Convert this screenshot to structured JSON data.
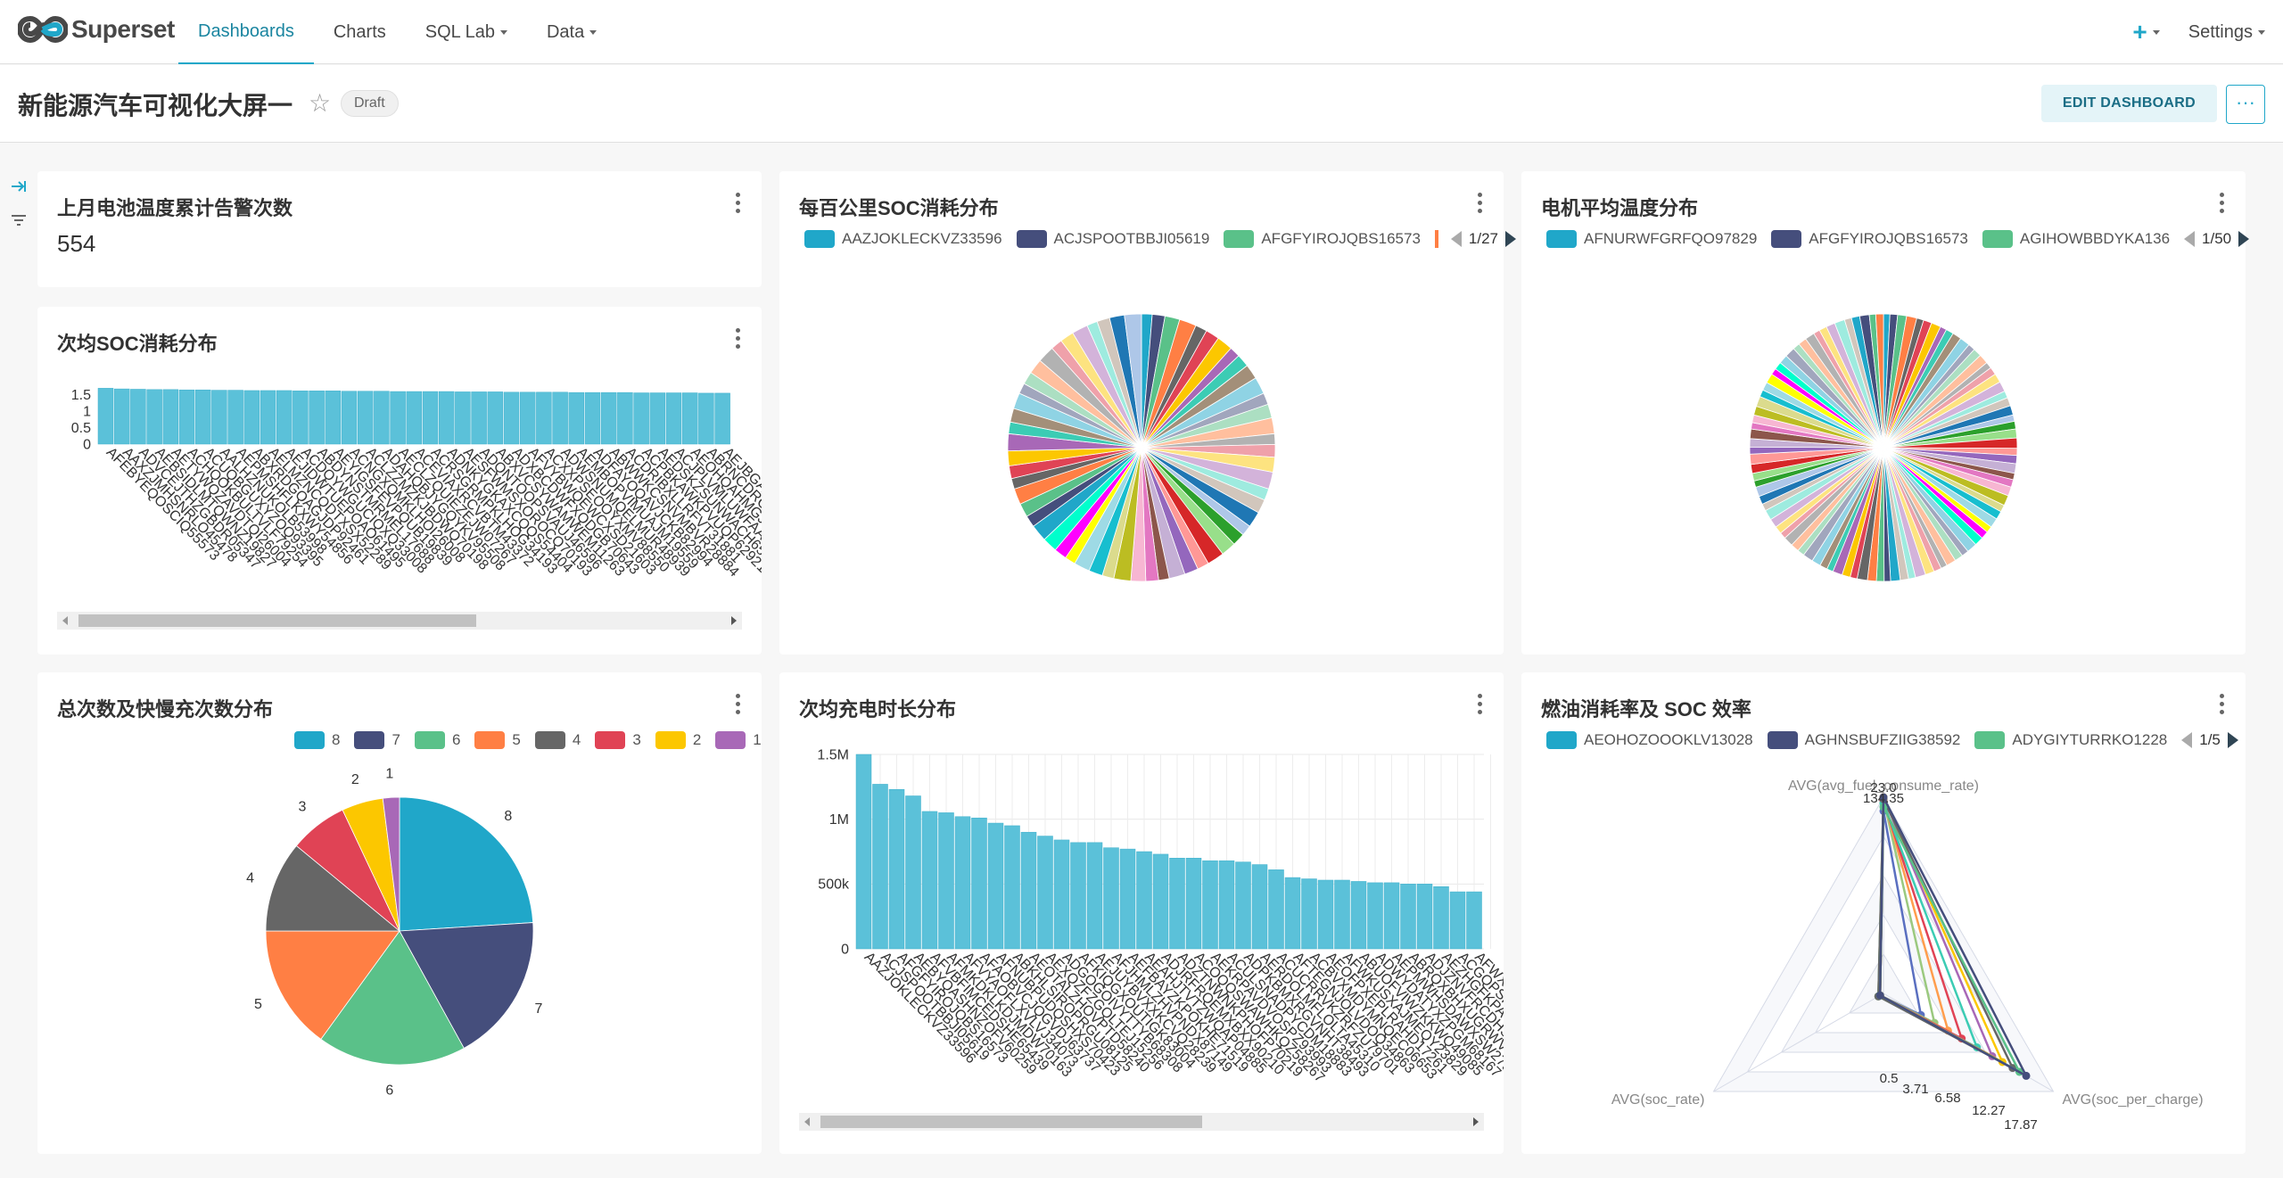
{
  "nav": {
    "brand": "Superset",
    "items": [
      {
        "label": "Dashboards",
        "active": true,
        "caret": false
      },
      {
        "label": "Charts",
        "active": false,
        "caret": false
      },
      {
        "label": "SQL Lab",
        "active": false,
        "caret": true
      },
      {
        "label": "Data",
        "active": false,
        "caret": true
      }
    ],
    "plus": "+",
    "settings": "Settings"
  },
  "header": {
    "title": "新能源汽车可视化大屏一",
    "badge": "Draft",
    "edit_label": "EDIT DASHBOARD",
    "more_label": "···"
  },
  "colors": [
    "#20a7c9",
    "#454e7c",
    "#5ac189",
    "#ff7f44",
    "#666666",
    "#e04355",
    "#fcc700",
    "#a868b7",
    "#3cccb4",
    "#a38f79",
    "#8fd3e4",
    "#a1a6bd",
    "#acdfc2",
    "#ffbf9e",
    "#b2b2b2",
    "#efa1aa",
    "#fde380",
    "#d3b3da",
    "#9eebdf",
    "#d1c6bc",
    "#1f77b4",
    "#aec7e8",
    "#2ca02c",
    "#98df8a",
    "#d62728",
    "#ff9896",
    "#9467bd",
    "#c5b0d5",
    "#8c564b",
    "#e377c2",
    "#f7b6d2",
    "#bcbd22",
    "#dbdb8d",
    "#17becf",
    "#9edae5",
    "#ffff00",
    "#ff00ff",
    "#00ffcc"
  ],
  "cards": {
    "alarm": {
      "title": "上月电池温度累计告警次数",
      "value": "554"
    },
    "soc_per": {
      "title": "次均SOC消耗分布",
      "chart_data": {
        "type": "bar",
        "yticks": [
          "1.5",
          "1",
          "0.5",
          "0"
        ],
        "ylim": [
          0,
          1.9
        ],
        "values": [
          1.7,
          1.68,
          1.67,
          1.66,
          1.66,
          1.65,
          1.65,
          1.64,
          1.64,
          1.63,
          1.63,
          1.63,
          1.62,
          1.62,
          1.62,
          1.61,
          1.61,
          1.61,
          1.6,
          1.6,
          1.6,
          1.6,
          1.59,
          1.59,
          1.59,
          1.58,
          1.58,
          1.58,
          1.58,
          1.57,
          1.57,
          1.57,
          1.57,
          1.56,
          1.56,
          1.56,
          1.56,
          1.55,
          1.55,
          1.55
        ],
        "categories": [
          "AFEBYEQOSCIQ55573",
          "AAXZJMHSNRLO45478",
          "ADVCEJTHZGBDR05347",
          "AEBSIDLMTQWNZ19827",
          "AETYWQZAVDTQI26004",
          "ACHQOKBULTVLF79254",
          "ACUQBGUXYZOQ93395",
          "AALHZNUKOLB53998",
          "AEPMSHFLKXWY54856",
          "ABXRDGQAGJDP92461",
          "AELMZNCQDTXSX52289",
          "AEJIDWTUEPOAO61495",
          "ACDQYWGUCIQXQ33008",
          "ABDYNSTMRMEL17688",
          "AEYIGSFEVPQUB19839",
          "ACNGXQMKLHOI26008",
          "ACLZZMZKJBDWQ70198",
          "ADAHQBJYGQYKV95508",
          "AECLZQUIEZEJW07267",
          "ACEVIAXRCVBTM43372",
          "ACRSGRMPKLHOG34193",
          "ADNKYGKAXCQQS54404",
          "AESFWMSXOROCQ70193",
          "ADQNTOOPSVAUJ46596",
          "ABXVCSYWAMWEM11263",
          "ADXBCDWFXQDGB70643",
          "AFVYBWQEWCXSD21603",
          "ACXXPSEOOYXMV88550",
          "ADWSNUMQELMUR48939",
          "AEMBOPVIMUAJM19559",
          "ADFAYOQAVJCKB82994",
          "ABWWKCSNVMBVR28884",
          "ACDRIBXLLRFVT31881",
          "ACPBKAWKPVUQP62921",
          "AEDSKZSUNWACH65178",
          "ACJPLVMLUWFAA22941",
          "AEOHQAHMGJZOD99153",
          "ABRNCDRCOXAZE90077",
          "AEJBGAXPZXFXS91104",
          "ACDKAHIYBOAQY12938"
        ]
      }
    },
    "soc100": {
      "title": "每百公里SOC消耗分布",
      "legend": [
        "AAZJOKLECKVZ33596",
        "ACJSPOOTBBJI05619",
        "AFGFYIROJQBS16573"
      ],
      "page": "1/27",
      "chart_data": {
        "type": "pie",
        "slices": 60
      }
    },
    "motor": {
      "title": "电机平均温度分布",
      "legend": [
        "AFNURWFGRFQO97829",
        "AFGFYIROJQBS16573",
        "AGIHOWBBDYKA136"
      ],
      "page": "1/50",
      "chart_data": {
        "type": "pie",
        "slices": 100
      }
    },
    "charge_count": {
      "title": "总次数及快慢充次数分布",
      "legend": [
        "8",
        "7",
        "6",
        "5",
        "4",
        "3",
        "2",
        "1"
      ],
      "chart_data": {
        "type": "pie",
        "labels": [
          "8",
          "7",
          "6",
          "5",
          "4",
          "3",
          "2",
          "1"
        ],
        "values": [
          24,
          18,
          18,
          15,
          11,
          7,
          5,
          2
        ]
      }
    },
    "charge_dur": {
      "title": "次均充电时长分布",
      "chart_data": {
        "type": "bar",
        "yticks": [
          "1.5M",
          "1M",
          "500k",
          "0"
        ],
        "ylim": [
          0,
          1.5
        ],
        "values": [
          1.5,
          1.27,
          1.23,
          1.18,
          1.06,
          1.05,
          1.02,
          1.01,
          0.97,
          0.95,
          0.9,
          0.87,
          0.84,
          0.82,
          0.82,
          0.78,
          0.77,
          0.75,
          0.73,
          0.7,
          0.7,
          0.68,
          0.68,
          0.67,
          0.65,
          0.61,
          0.55,
          0.54,
          0.53,
          0.53,
          0.52,
          0.51,
          0.51,
          0.5,
          0.5,
          0.48,
          0.44,
          0.44,
          0.43,
          0.41
        ],
        "categories": [
          "AAZJOKLECKVZ33596",
          "ACJSPOOTBBJI05619",
          "AFGFYIROJQBS16573",
          "AEBYQASHNZOFV60259",
          "AFVBFIMCEDSHE65439",
          "AFMKDKLKDJMDW70163",
          "AFVYAOFLXVLVJ34073",
          "AFAOBVCJQGVDJ63737",
          "AFNUBPUDQSHXS70423",
          "ABKHLSIROPRGU08125",
          "AEOTALZHOVPTD58240",
          "AEXQZFZGQLTEJ15256",
          "ADGOGOIVYTTYB68308",
          "AFKIQGXOUTIGK83004",
          "AEJUYBVXXKCVQ28239",
          "AFJHMLZHVPNDX87149",
          "AEFBAYZKPOKHE71519",
          "AEAHJTVTZWQAP04885",
          "ADJRFRQEMXBXX90210",
          "ADZTNWNKPHOFP70219",
          "ACOQQSWAWHKQZ58267",
          "AEKRPAVDVOSPZ93993",
          "ACULSNADPYCDM18883",
          "ADPKBMXRGVNHT38493",
          "AERDOLMFLOLTA45310",
          "ACUCRRVKZRFZU79701",
          "AFTEGNJOLVDOQ34863",
          "ACBVXMDYMNQEC06653",
          "AEOFPXEPLRAHD17261",
          "AFWKUSXAJMEQY23829",
          "ABUOFVIWZKKWQ49085",
          "ADWYDATYXZPGM68167",
          "AEPMWHSDAWXSW27953",
          "ABRQXBHXUGRWV75103",
          "ADJZNVFRCDHSR42195",
          "AEZHGFKPAQWXZ62025",
          "ACGQPSKDHDDUB96225",
          "AFWXQYYONAXXK60255",
          "AEZFKNPDWVKPL24813",
          "ABDRIBXLLRFVT31881"
        ]
      }
    },
    "fuel": {
      "title": "燃油消耗率及 SOC 效率",
      "legend": [
        "AEOHOZOOOKLV13028",
        "AGHNSBUFZIIG38592",
        "ADYGIYTURRKO1228"
      ],
      "page": "1/5",
      "chart_data": {
        "type": "radar",
        "axes": [
          "AVG(avg_fuel_consume_rate)",
          "AVG(soc_rate)",
          "AVG(soc_per_charge)"
        ],
        "top_labels": [
          "134.35",
          "23.0"
        ],
        "point_labels": [
          "0.5",
          "3.71",
          "6.58",
          "12.27",
          "17.87"
        ],
        "series": [
          {
            "values": [
              0.93,
              0.02,
              0.22
            ]
          },
          {
            "values": [
              0.99,
              0.02,
              0.3
            ]
          },
          {
            "values": [
              0.99,
              0.03,
              0.38
            ]
          },
          {
            "values": [
              0.98,
              0.02,
              0.46
            ]
          },
          {
            "values": [
              0.97,
              0.03,
              0.55
            ]
          },
          {
            "values": [
              1.0,
              0.02,
              0.64
            ]
          },
          {
            "values": [
              1.0,
              0.02,
              0.7
            ]
          },
          {
            "values": [
              0.99,
              0.03,
              0.76
            ]
          },
          {
            "values": [
              0.95,
              0.02,
              0.8
            ]
          },
          {
            "values": [
              1.0,
              0.02,
              0.84
            ]
          }
        ]
      }
    }
  }
}
